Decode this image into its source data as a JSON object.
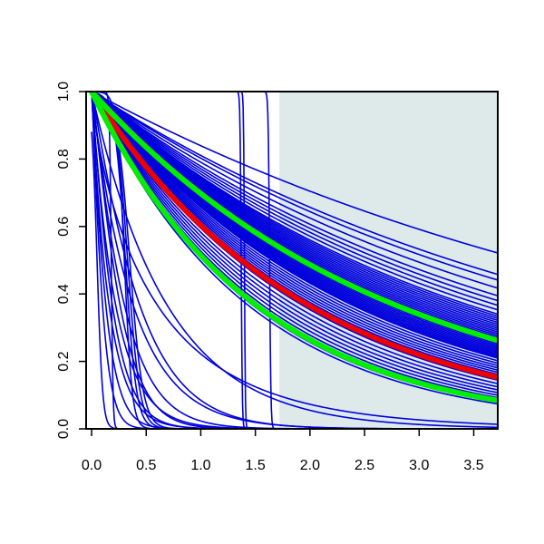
{
  "chart_data": {
    "type": "line",
    "title": "",
    "xlabel": "",
    "ylabel": "",
    "xlim": [
      -0.05,
      3.72
    ],
    "ylim": [
      0.0,
      1.0
    ],
    "x_ticks": [
      0.0,
      0.5,
      1.0,
      1.5,
      2.0,
      2.5,
      3.0,
      3.5
    ],
    "x_tick_labels": [
      "0.0",
      "0.5",
      "1.0",
      "1.5",
      "2.0",
      "2.5",
      "3.0",
      "3.5"
    ],
    "y_ticks": [
      0.0,
      0.2,
      0.4,
      0.6,
      0.8,
      1.0
    ],
    "y_tick_labels": [
      "0.0",
      "0.2",
      "0.4",
      "0.6",
      "0.8",
      "1.0"
    ],
    "grid": false,
    "legend": "none",
    "shaded_region": {
      "x_from": 1.72,
      "x_to": 3.72,
      "color": "#deeaea"
    },
    "colors": {
      "sample": "#0000dd",
      "estimate": "#ee0000",
      "band": "#00ee00",
      "axis": "#000000"
    },
    "exponential_samples": {
      "description": "blue survival curves y = exp(-rate * x)",
      "rates": [
        0.175,
        0.21,
        0.22,
        0.235,
        0.25,
        0.26,
        0.27,
        0.28,
        0.29,
        0.295,
        0.3,
        0.305,
        0.31,
        0.315,
        0.32,
        0.325,
        0.33,
        0.335,
        0.34,
        0.345,
        0.35,
        0.355,
        0.36,
        0.365,
        0.37,
        0.375,
        0.38,
        0.385,
        0.39,
        0.395,
        0.4,
        0.405,
        0.41,
        0.415,
        0.42,
        0.43,
        0.44,
        0.45,
        0.46,
        0.47,
        0.48,
        0.49,
        0.5,
        0.52,
        0.54,
        0.56,
        0.58,
        0.6,
        0.62,
        0.64,
        0.66,
        0.68,
        0.7,
        1.45
      ]
    },
    "step_samples": {
      "description": "blue near-vertical drop curves y = 1/(1+exp((x-location)/scale))",
      "curves": [
        {
          "location": 0.05,
          "scale": 0.025
        },
        {
          "location": 0.18,
          "scale": 0.008
        },
        {
          "location": 0.3,
          "scale": 0.035
        },
        {
          "location": 0.31,
          "scale": 0.05
        },
        {
          "location": 0.33,
          "scale": 0.055
        },
        {
          "location": 0.35,
          "scale": 0.06
        },
        {
          "location": 1.37,
          "scale": 0.005
        },
        {
          "location": 1.4,
          "scale": 0.004
        },
        {
          "location": 1.63,
          "scale": 0.006
        }
      ]
    },
    "fast_decay_samples": {
      "description": "blue early-drop curves y = exp(-(x/scale)^shape)",
      "curves": [
        {
          "scale": 0.1,
          "shape": 1.2
        },
        {
          "scale": 0.13,
          "shape": 1.1
        },
        {
          "scale": 0.16,
          "shape": 1.0
        },
        {
          "scale": 0.19,
          "shape": 1.1
        },
        {
          "scale": 0.22,
          "shape": 1.0
        },
        {
          "scale": 0.26,
          "shape": 1.2
        },
        {
          "scale": 0.3,
          "shape": 1.1
        },
        {
          "scale": 0.38,
          "shape": 1.0
        },
        {
          "scale": 0.44,
          "shape": 1.1
        },
        {
          "scale": 0.6,
          "shape": 0.8
        }
      ]
    },
    "series": [
      {
        "role": "estimate",
        "color": "#ee0000",
        "rate": 0.505
      },
      {
        "role": "upper-band",
        "color": "#00ee00",
        "rate": 0.36
      },
      {
        "role": "lower-band",
        "color": "#00ee00",
        "rate": 0.665
      }
    ]
  }
}
